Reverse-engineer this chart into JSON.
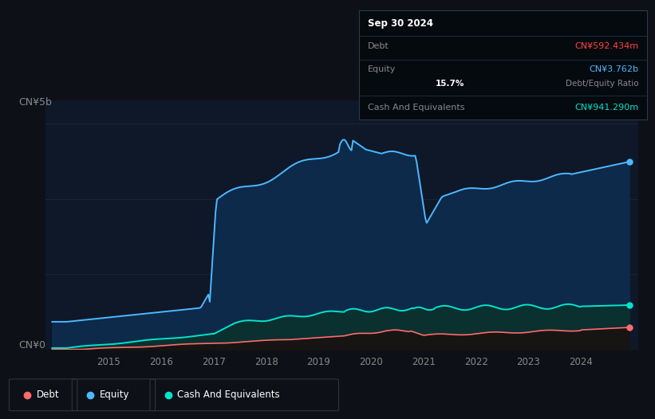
{
  "bg_color": "#0d1117",
  "plot_bg_color": "#0e1829",
  "grid_color": "#1a2535",
  "equity_line_color": "#4db8ff",
  "equity_fill_color": "#0d2a4a",
  "cash_line_color": "#00e5cc",
  "cash_fill_color": "#0a3030",
  "debt_line_color": "#ff6b6b",
  "debt_fill_color": "#1a1010",
  "ylabel_top": "CN¥5b",
  "ylabel_bottom": "CN¥0",
  "x_tick_labels": [
    "2015",
    "2016",
    "2017",
    "2018",
    "2019",
    "2020",
    "2021",
    "2022",
    "2023",
    "2024"
  ],
  "x_tick_years": [
    2015,
    2016,
    2017,
    2018,
    2019,
    2020,
    2021,
    2022,
    2023,
    2024
  ],
  "ylim": [
    0,
    5.5
  ],
  "xlim_start": 2013.8,
  "xlim_end": 2025.1,
  "tooltip_date": "Sep 30 2024",
  "tooltip_debt_label": "Debt",
  "tooltip_debt_value": "CN¥592.434m",
  "tooltip_debt_color": "#ff4444",
  "tooltip_equity_label": "Equity",
  "tooltip_equity_value": "CN¥3.762b",
  "tooltip_equity_color": "#4db8ff",
  "tooltip_ratio": "15.7%",
  "tooltip_ratio_label": "Debt/Equity Ratio",
  "tooltip_cash_label": "Cash And Equivalents",
  "tooltip_cash_value": "CN¥941.290m",
  "tooltip_cash_color": "#00e5cc",
  "legend_items": [
    {
      "label": "Debt",
      "color": "#ff6b6b"
    },
    {
      "label": "Equity",
      "color": "#4db8ff"
    },
    {
      "label": "Cash And Equivalents",
      "color": "#00e5cc"
    }
  ]
}
